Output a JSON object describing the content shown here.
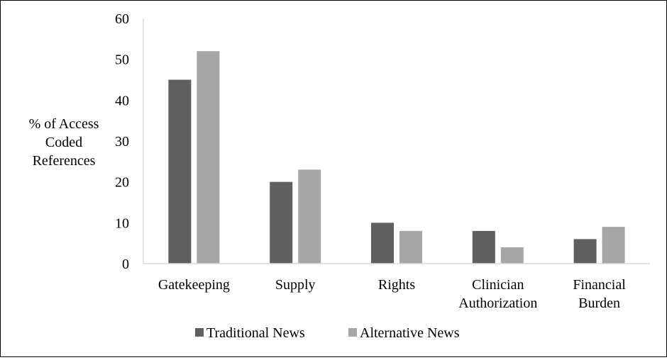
{
  "chart_data": {
    "type": "bar",
    "categories": [
      [
        "Gatekeeping"
      ],
      [
        "Supply"
      ],
      [
        "Rights"
      ],
      [
        "Clinician",
        "Authorization"
      ],
      [
        "Financial",
        "Burden"
      ]
    ],
    "series": [
      {
        "name": "Traditional News",
        "values": [
          45,
          20,
          10,
          8,
          6
        ]
      },
      {
        "name": "Alternative News",
        "values": [
          52,
          23,
          8,
          4,
          9
        ]
      }
    ],
    "ylabel": [
      "% of Access",
      "Coded",
      "References"
    ],
    "xlabel": "",
    "ylim": [
      0,
      60
    ],
    "yticks": [
      0,
      10,
      20,
      30,
      40,
      50,
      60
    ],
    "grid": false,
    "legend": "bottom",
    "colors": {
      "Traditional News": "#5f5f5f",
      "Alternative News": "#a6a6a6",
      "axis": "#d9d9d9"
    }
  }
}
